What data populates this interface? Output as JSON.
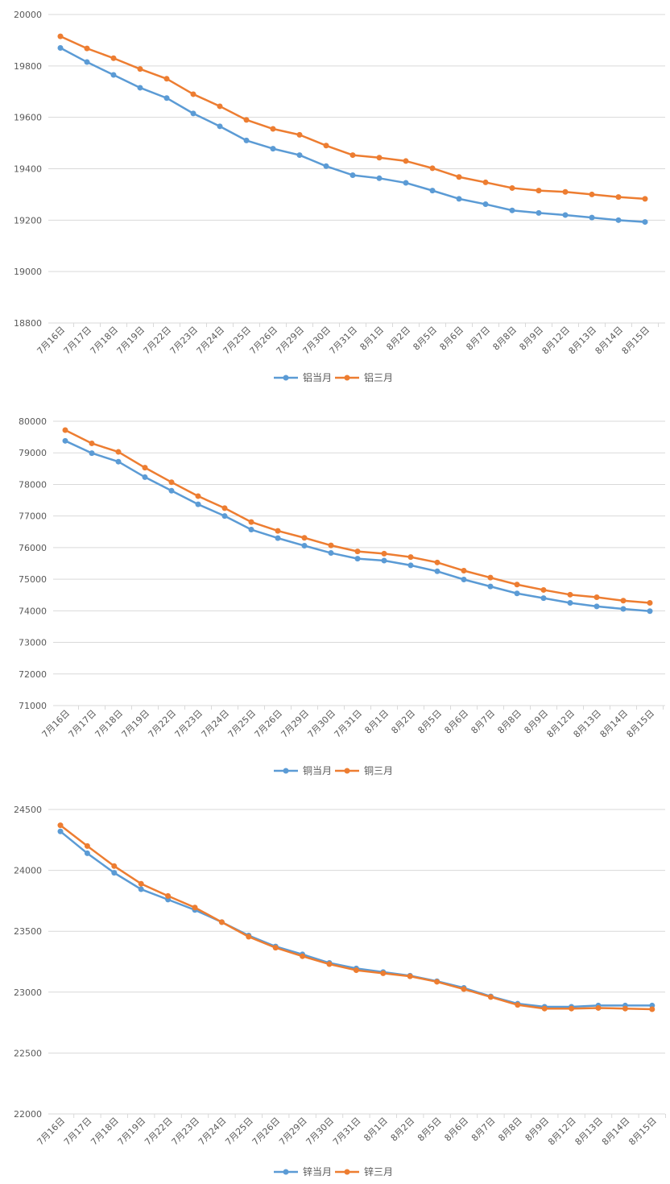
{
  "chart_data": [
    {
      "type": "line",
      "title": "",
      "xlabel": "",
      "ylabel": "",
      "categories": [
        "7月16日",
        "7月17日",
        "7月18日",
        "7月19日",
        "7月22日",
        "7月23日",
        "7月24日",
        "7月25日",
        "7月26日",
        "7月29日",
        "7月30日",
        "7月31日",
        "8月1日",
        "8月2日",
        "8月5日",
        "8月6日",
        "8月7日",
        "8月8日",
        "8月9日",
        "8月12日",
        "8月13日",
        "8月14日",
        "8月15日"
      ],
      "ylim": [
        18800,
        20000
      ],
      "yticks": [
        18800,
        19000,
        19200,
        19400,
        19600,
        19800,
        20000
      ],
      "grid": true,
      "legend": "bottom",
      "series": [
        {
          "name": "铝当月",
          "color": "#5B9BD5",
          "values": [
            19870,
            19815,
            19765,
            19715,
            19675,
            19615,
            19565,
            19510,
            19478,
            19453,
            19410,
            19375,
            19363,
            19345,
            19315,
            19283,
            19262,
            19238,
            19228,
            19220,
            19210,
            19200,
            19193
          ]
        },
        {
          "name": "铝三月",
          "color": "#ED7D31",
          "values": [
            19915,
            19868,
            19830,
            19788,
            19750,
            19690,
            19643,
            19590,
            19555,
            19532,
            19490,
            19453,
            19443,
            19430,
            19402,
            19368,
            19347,
            19325,
            19315,
            19310,
            19300,
            19290,
            19283
          ]
        }
      ]
    },
    {
      "type": "line",
      "title": "",
      "xlabel": "",
      "ylabel": "",
      "categories": [
        "7月16日",
        "7月17日",
        "7月18日",
        "7月19日",
        "7月22日",
        "7月23日",
        "7月24日",
        "7月25日",
        "7月26日",
        "7月29日",
        "7月30日",
        "7月31日",
        "8月1日",
        "8月2日",
        "8月5日",
        "8月6日",
        "8月7日",
        "8月8日",
        "8月9日",
        "8月12日",
        "8月13日",
        "8月14日",
        "8月15日"
      ],
      "ylim": [
        71000,
        80000
      ],
      "yticks": [
        71000,
        72000,
        73000,
        74000,
        75000,
        76000,
        77000,
        78000,
        79000,
        80000
      ],
      "grid": true,
      "legend": "bottom",
      "series": [
        {
          "name": "铜当月",
          "color": "#5B9BD5",
          "values": [
            79380,
            78990,
            78720,
            78230,
            77800,
            77370,
            77000,
            76570,
            76300,
            76060,
            75830,
            75650,
            75590,
            75440,
            75250,
            74990,
            74770,
            74550,
            74400,
            74250,
            74140,
            74060,
            73990
          ]
        },
        {
          "name": "铜三月",
          "color": "#ED7D31",
          "values": [
            79720,
            79300,
            79030,
            78530,
            78070,
            77630,
            77250,
            76810,
            76530,
            76310,
            76070,
            75880,
            75810,
            75700,
            75530,
            75270,
            75050,
            74830,
            74660,
            74510,
            74430,
            74320,
            74250
          ]
        }
      ]
    },
    {
      "type": "line",
      "title": "",
      "xlabel": "",
      "ylabel": "",
      "categories": [
        "7月16日",
        "7月17日",
        "7月18日",
        "7月19日",
        "7月22日",
        "7月23日",
        "7月24日",
        "7月25日",
        "7月26日",
        "7月29日",
        "7月30日",
        "7月31日",
        "8月1日",
        "8月2日",
        "8月5日",
        "8月6日",
        "8月7日",
        "8月8日",
        "8月9日",
        "8月12日",
        "8月13日",
        "8月14日",
        "8月15日"
      ],
      "ylim": [
        22000,
        24500
      ],
      "yticks": [
        22000,
        22500,
        23000,
        23500,
        24000,
        24500
      ],
      "grid": true,
      "legend": "bottom",
      "series": [
        {
          "name": "锌当月",
          "color": "#5B9BD5",
          "values": [
            24320,
            24140,
            23980,
            23845,
            23760,
            23675,
            23575,
            23465,
            23375,
            23310,
            23240,
            23195,
            23165,
            23135,
            23090,
            23035,
            22965,
            22905,
            22880,
            22880,
            22890,
            22890,
            22890
          ]
        },
        {
          "name": "锌三月",
          "color": "#ED7D31",
          "values": [
            24370,
            24200,
            24035,
            23890,
            23790,
            23695,
            23575,
            23455,
            23365,
            23295,
            23230,
            23180,
            23155,
            23130,
            23085,
            23025,
            22960,
            22895,
            22865,
            22865,
            22870,
            22865,
            22860
          ]
        }
      ]
    }
  ]
}
